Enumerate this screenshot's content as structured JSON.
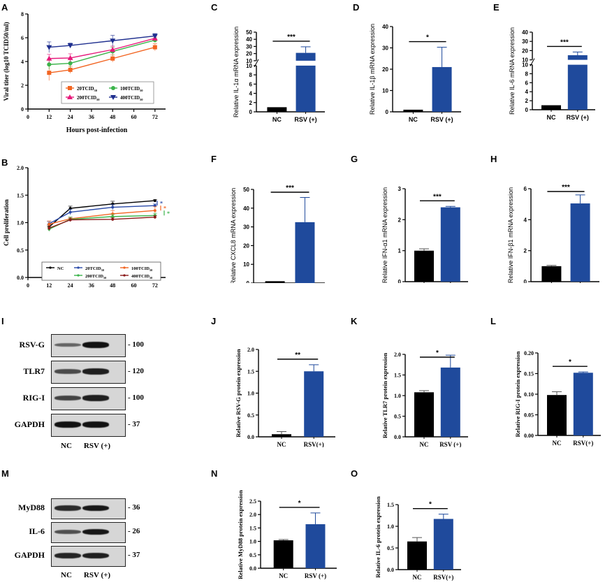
{
  "panel_labels": {
    "A": "A",
    "B": "B",
    "C": "C",
    "D": "D",
    "E": "E",
    "F": "F",
    "G": "G",
    "H": "H",
    "I": "I",
    "J": "J",
    "K": "K",
    "L": "L",
    "M": "M",
    "N": "N",
    "O": "O"
  },
  "colors": {
    "nc_bar": "#000000",
    "rsv_bar": "#1f4a9c",
    "errbar_rsv": "#7d9ac9"
  },
  "chart_data": [
    {
      "id": "A",
      "type": "line",
      "title": "",
      "xlabel": "Hours post-infection",
      "ylabel": "Viral titer (log10 TCID50/ml)",
      "x": [
        12,
        24,
        48,
        72
      ],
      "xticks": [
        0,
        12,
        24,
        36,
        48,
        60,
        72
      ],
      "xlim": [
        0,
        78
      ],
      "yticks": [
        0,
        2,
        4,
        6,
        8
      ],
      "ylim": [
        0,
        8
      ],
      "legend": "bottom-right",
      "series": [
        {
          "name": "20TCID50",
          "color": "#f26522",
          "marker": "square",
          "values": [
            3.05,
            3.3,
            4.25,
            5.2
          ],
          "err": [
            0.65,
            0.3,
            0.3,
            0.3
          ]
        },
        {
          "name": "100TCID50",
          "color": "#3cb44b",
          "marker": "circle",
          "values": [
            3.75,
            3.85,
            4.85,
            5.8
          ],
          "err": [
            0.4,
            0.4,
            0.35,
            0.2
          ]
        },
        {
          "name": "200TCID50",
          "color": "#e6197a",
          "marker": "triangle",
          "values": [
            4.25,
            4.3,
            5.0,
            5.95
          ],
          "err": [
            0.35,
            0.35,
            0.3,
            0.2
          ]
        },
        {
          "name": "400TCID50",
          "color": "#1f2f8f",
          "marker": "triangle-down",
          "values": [
            5.2,
            5.35,
            5.75,
            6.15
          ],
          "err": [
            0.45,
            0.2,
            0.45,
            0.2
          ]
        }
      ]
    },
    {
      "id": "B",
      "type": "line",
      "title": "",
      "xlabel": "Hours post-infection",
      "ylabel": "Cell proliferation",
      "x": [
        12,
        24,
        48,
        72
      ],
      "xticks": [
        0,
        12,
        24,
        36,
        48,
        60,
        72
      ],
      "xlim": [
        0,
        78
      ],
      "yticks": [
        "0.0",
        "0.5",
        "1.0",
        "1.5",
        "2.0"
      ],
      "ylim": [
        0,
        2
      ],
      "legend": "bottom",
      "annotations": [
        "*",
        "*",
        "*"
      ],
      "series": [
        {
          "name": "NC",
          "color": "#000000",
          "values": [
            0.92,
            1.26,
            1.34,
            1.4
          ],
          "err": [
            0.04,
            0.04,
            0.05,
            0.02
          ]
        },
        {
          "name": "20TCID50",
          "color": "#2a4aa8",
          "values": [
            0.98,
            1.19,
            1.28,
            1.31
          ],
          "err": [
            0.04,
            0.05,
            0.05,
            0.03
          ]
        },
        {
          "name": "100TCID50",
          "color": "#f26522",
          "values": [
            0.97,
            1.07,
            1.16,
            1.22
          ],
          "err": [
            0.06,
            0.03,
            0.06,
            0.07
          ]
        },
        {
          "name": "200TCID50",
          "color": "#3cb44b",
          "values": [
            0.88,
            1.06,
            1.11,
            1.13
          ],
          "err": [
            0.04,
            0.04,
            0.04,
            0.04
          ]
        },
        {
          "name": "400TCID50",
          "color": "#8b1a1a",
          "values": [
            0.9,
            1.05,
            1.06,
            1.1
          ],
          "err": [
            0.04,
            0.03,
            0.03,
            0.03
          ]
        }
      ]
    },
    {
      "id": "C",
      "type": "bar",
      "ylabel": "Relative IL-1α mRNA expression",
      "categories": [
        "NC",
        "RSV (+)"
      ],
      "values": [
        1.0,
        21.0
      ],
      "err": [
        0,
        8.5
      ],
      "significance": "***",
      "axis_break": true,
      "yticks_low": [
        "0",
        "2",
        "4",
        "6",
        "8",
        "10"
      ],
      "yticks_high": [
        "10",
        "20",
        "30",
        "40",
        "50"
      ],
      "font": "sans"
    },
    {
      "id": "D",
      "type": "bar",
      "ylabel": "Relative IL-1β mRNA expression",
      "categories": [
        "NC",
        "RSV (+)"
      ],
      "values": [
        1.0,
        21.0
      ],
      "err": [
        0,
        9.3
      ],
      "significance": "*",
      "yticks": [
        "0",
        "10",
        "20",
        "30",
        "40"
      ],
      "ylim": [
        0,
        40
      ],
      "font": "sans"
    },
    {
      "id": "E",
      "type": "bar",
      "ylabel": "Relative IL-6 mRNA expression",
      "categories": [
        "NC",
        "RSV (+)"
      ],
      "values": [
        1.0,
        15.0
      ],
      "err": [
        0,
        3.5
      ],
      "significance": "***",
      "axis_break": true,
      "yticks_low": [
        "0",
        "2",
        "4",
        "6",
        "8",
        "10"
      ],
      "yticks_high": [
        "10",
        "20",
        "30",
        "40"
      ],
      "font": "sans"
    },
    {
      "id": "F",
      "type": "bar",
      "ylabel": "Relative CXCL8 mRNA expression",
      "categories": [
        "NC",
        "RSV (+)"
      ],
      "values": [
        1.0,
        32.5
      ],
      "err": [
        0,
        13.2
      ],
      "significance": "***",
      "yticks": [
        "0",
        "10",
        "20",
        "30",
        "40",
        "50"
      ],
      "ylim": [
        0,
        50
      ],
      "font": "sans"
    },
    {
      "id": "G",
      "type": "bar",
      "ylabel": "Relative IFN-α1 mRNA expression",
      "categories": [
        "NC",
        "RSV (+)"
      ],
      "values": [
        1.0,
        2.4
      ],
      "err": [
        0.06,
        0.03
      ],
      "significance": "***",
      "yticks": [
        "0",
        "1",
        "2",
        "3"
      ],
      "ylim": [
        0,
        3
      ],
      "font": "sans"
    },
    {
      "id": "H",
      "type": "bar",
      "ylabel": "Relative IFN-β1 mRNA expression",
      "categories": [
        "NC",
        "RSV (+)"
      ],
      "values": [
        1.0,
        5.05
      ],
      "err": [
        0.05,
        0.55
      ],
      "significance": "***",
      "yticks": [
        "0",
        "2",
        "4",
        "6"
      ],
      "ylim": [
        0,
        6
      ],
      "font": "sans"
    },
    {
      "id": "J",
      "type": "bar",
      "ylabel": "Relative RSV-G protein expression",
      "categories": [
        "NC",
        "RSV(+)"
      ],
      "values": [
        0.06,
        1.5
      ],
      "err": [
        0.06,
        0.15
      ],
      "significance": "**",
      "yticks": [
        "0.0",
        "0.5",
        "1.0",
        "1.5",
        "2.0"
      ],
      "ylim": [
        0,
        2
      ],
      "font": "serif"
    },
    {
      "id": "K",
      "type": "bar",
      "ylabel": "Relative TLR7 protein expression",
      "categories": [
        "NC",
        "RSV (+)"
      ],
      "values": [
        1.08,
        1.68
      ],
      "err": [
        0.04,
        0.3
      ],
      "significance": "*",
      "yticks": [
        "0.0",
        "0.5",
        "1.0",
        "1.5",
        "2.0"
      ],
      "ylim": [
        0,
        2
      ],
      "font": "serif"
    },
    {
      "id": "L",
      "type": "bar",
      "ylabel": "Relative RIG-I protein expression",
      "categories": [
        "NC",
        "RSV(+)"
      ],
      "values": [
        0.098,
        0.152
      ],
      "err": [
        0.008,
        0.002
      ],
      "significance": "*",
      "yticks": [
        "0.00",
        "0.05",
        "0.10",
        "0.15",
        "0.20"
      ],
      "ylim": [
        0,
        0.2
      ],
      "font": "serif"
    },
    {
      "id": "N",
      "type": "bar",
      "ylabel": "Relative MyD88 protein expression",
      "categories": [
        "NC",
        "RSV (+)"
      ],
      "values": [
        1.04,
        1.64
      ],
      "err": [
        0.03,
        0.42
      ],
      "significance": "*",
      "yticks": [
        "0.0",
        "0.5",
        "1.0",
        "1.5",
        "2.0",
        "2.5"
      ],
      "ylim": [
        0,
        2.5
      ],
      "font": "serif"
    },
    {
      "id": "O",
      "type": "bar",
      "ylabel": "Relative IL-6 protein expression",
      "categories": [
        "NC",
        "RSV(+)"
      ],
      "values": [
        0.65,
        1.17
      ],
      "err": [
        0.09,
        0.11
      ],
      "significance": "*",
      "yticks": [
        "0.0",
        "0.5",
        "1.0",
        "1.5"
      ],
      "ylim": [
        0,
        1.5
      ],
      "font": "serif"
    }
  ],
  "blots": {
    "I": {
      "rows": [
        {
          "name": "RSV-G",
          "kda": "- 100",
          "nc": 0.35,
          "rsv": 1.0
        },
        {
          "name": "TLR7",
          "kda": "- 120",
          "nc": 0.55,
          "rsv": 0.9
        },
        {
          "name": "RIG-I",
          "kda": "- 100",
          "nc": 0.6,
          "rsv": 0.9
        },
        {
          "name": "GAPDH",
          "kda": "- 37",
          "nc": 1.0,
          "rsv": 1.0
        }
      ],
      "lanes": [
        "NC",
        "RSV (+)"
      ]
    },
    "M": {
      "rows": [
        {
          "name": "MyD88",
          "kda": "- 36",
          "nc": 0.8,
          "rsv": 0.95
        },
        {
          "name": "IL-6",
          "kda": "- 26",
          "nc": 0.5,
          "rsv": 0.95
        },
        {
          "name": "GAPDH",
          "kda": "- 37",
          "nc": 0.85,
          "rsv": 0.9
        }
      ],
      "lanes": [
        "NC",
        "RSV (+)"
      ]
    }
  }
}
